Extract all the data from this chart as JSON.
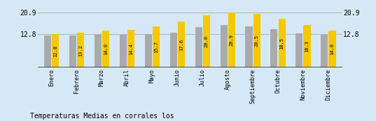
{
  "categories": [
    "Enero",
    "Febrero",
    "Marzo",
    "Abril",
    "Mayo",
    "Junio",
    "Julio",
    "Agosto",
    "Septiembre",
    "Octubre",
    "Noviembre",
    "Diciembre"
  ],
  "values": [
    12.8,
    13.2,
    14.0,
    14.4,
    15.7,
    17.6,
    20.0,
    20.9,
    20.5,
    18.5,
    16.3,
    14.0
  ],
  "gray_values": [
    12.2,
    12.3,
    12.5,
    12.6,
    12.9,
    13.4,
    15.5,
    16.2,
    15.8,
    14.5,
    13.1,
    12.5
  ],
  "bar_color_yellow": "#F5C800",
  "bar_color_gray": "#AAAAAA",
  "background_color": "#D6E8F5",
  "title": "Temperaturas Medias en corrales los",
  "ylim_min": 0,
  "ylim_max": 22.5,
  "ytick_values": [
    12.8,
    20.9
  ],
  "font_size_ticks": 7,
  "font_size_xlabels": 6,
  "font_size_values": 5,
  "font_size_title": 7,
  "hline_color": "#AAAAAA",
  "bottom_line_color": "#333333"
}
